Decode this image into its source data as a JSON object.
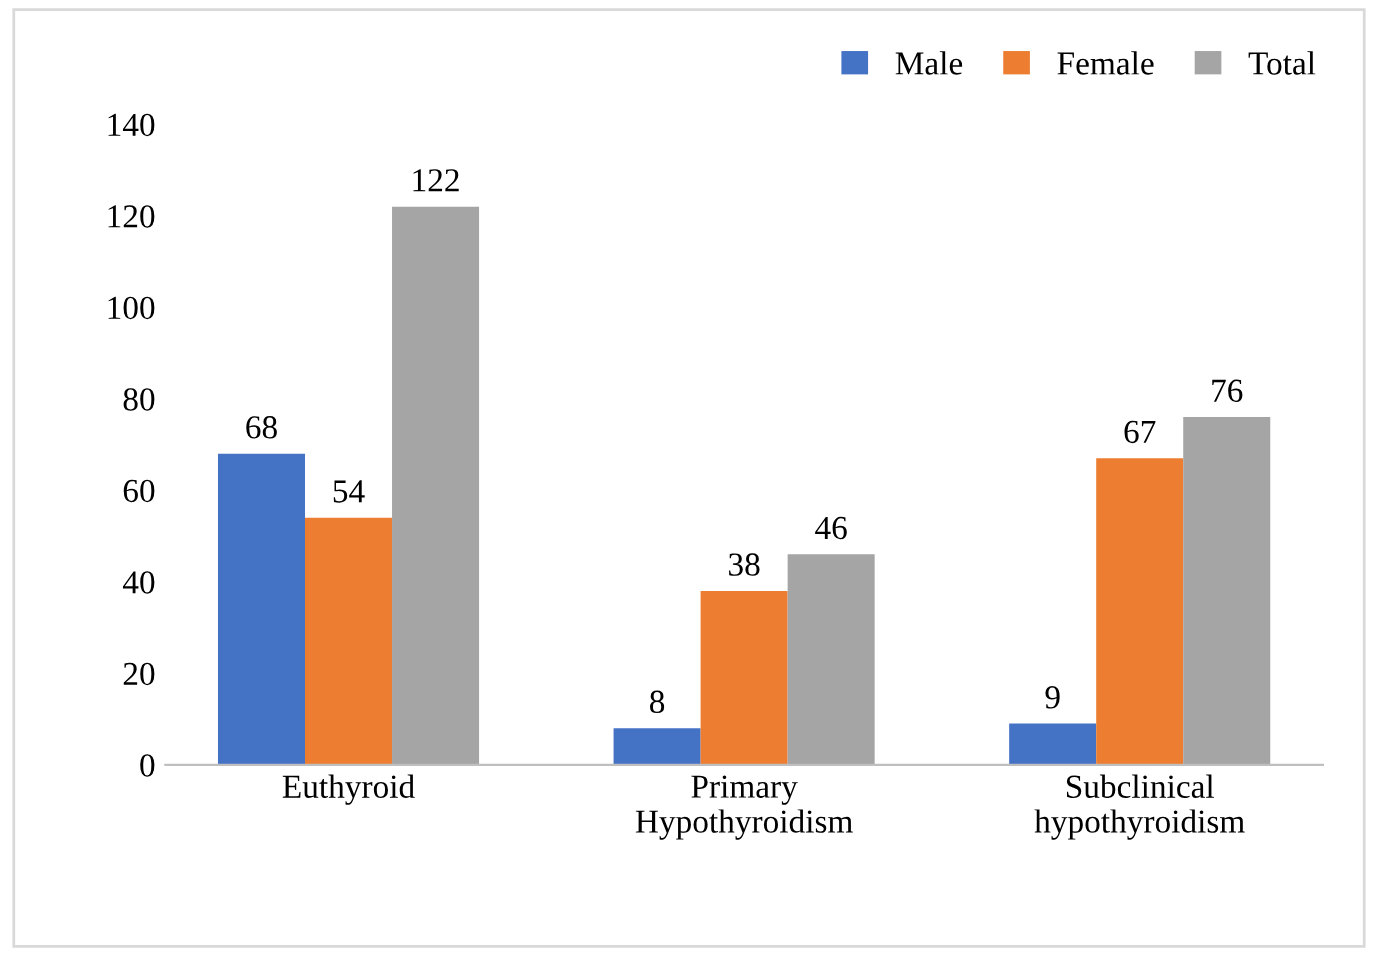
{
  "chart_data": {
    "type": "bar",
    "categories": [
      "Euthyroid",
      "Primary\nHypothyroidism",
      "Subclinical\nhypothyroidism"
    ],
    "series": [
      {
        "name": "Male",
        "color": "#4472c4",
        "values": [
          68,
          8,
          9
        ]
      },
      {
        "name": "Female",
        "color": "#ed7d31",
        "values": [
          54,
          38,
          67
        ]
      },
      {
        "name": "Total",
        "color": "#a5a5a5",
        "values": [
          122,
          46,
          76
        ]
      }
    ],
    "ylim": [
      0,
      140
    ],
    "yticks": [
      0,
      20,
      40,
      60,
      80,
      100,
      120,
      140
    ],
    "data_labels": true,
    "legend": "top right",
    "grid": false
  }
}
